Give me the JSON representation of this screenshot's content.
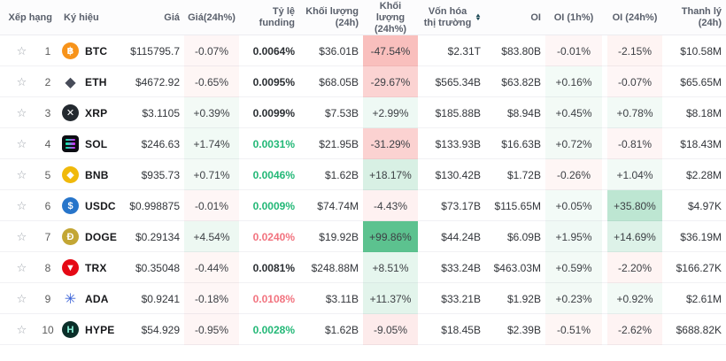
{
  "colors": {
    "heat_up_rgb": "44,176,110",
    "heat_down_rgb": "241,94,88",
    "funding_up": "#23b877",
    "funding_down": "#f2737f",
    "sort_icon": "#1d4a56",
    "star": "#a2a7ae"
  },
  "icons": {
    "star_glyph": "☆",
    "sort_up_glyph": "▲",
    "sort_down_glyph": "▼"
  },
  "header": {
    "columns": [
      {
        "id": "rank",
        "label": "Xếp hạng",
        "col": 1,
        "span": 2,
        "align": "right"
      },
      {
        "id": "symbol",
        "label": "Ký hiệu",
        "col": 3,
        "span": 1,
        "align": "left"
      },
      {
        "id": "price",
        "label": "Giá",
        "col": 4,
        "span": 1,
        "align": "right"
      },
      {
        "id": "chg24h",
        "label": "Giá(24h%)",
        "col": 5,
        "span": 1,
        "align": "center"
      },
      {
        "id": "funding",
        "label": "Tỷ lệ funding",
        "col": 6,
        "span": 1,
        "align": "right"
      },
      {
        "id": "vol",
        "label": "Khối lượng (24h)",
        "col": 7,
        "span": 1,
        "align": "right"
      },
      {
        "id": "volchg",
        "label": "Khối lượng (24h%)",
        "col": 8,
        "span": 1,
        "align": "center"
      },
      {
        "id": "mcap",
        "label": "Vốn hóa thị trường",
        "col": 9,
        "span": 1,
        "align": "center",
        "sortable": true,
        "wrap": true
      },
      {
        "id": "oi",
        "label": "OI",
        "col": 10,
        "span": 1,
        "align": "right"
      },
      {
        "id": "oi1h",
        "label": "OI (1h%)",
        "col": 11,
        "span": 1,
        "align": "center"
      },
      {
        "id": "oi24h",
        "label": "OI (24h%)",
        "col": 13,
        "span": 1,
        "align": "center"
      },
      {
        "id": "liq",
        "label": "Thanh lý (24h)",
        "col": 14,
        "span": 1,
        "align": "right"
      }
    ]
  },
  "rows": [
    {
      "rank": "1",
      "symbol": "BTC",
      "icon": {
        "shape": "circle",
        "bg": "#F7931A",
        "fg": "#ffffff",
        "glyph": "฿"
      },
      "price": "$115795.7",
      "chg24h": "-0.07%",
      "funding": {
        "text": "0.0064%",
        "tone": "neutral"
      },
      "vol": "$36.01B",
      "volchg": "-47.54%",
      "mcap": "$2.31T",
      "oi": "$83.80B",
      "oi1h": "-0.01%",
      "oi24h": "-2.15%",
      "liq": "$10.58M"
    },
    {
      "rank": "2",
      "symbol": "ETH",
      "icon": {
        "shape": "plain",
        "bg": "",
        "fg": "#474c59",
        "glyph": "◆"
      },
      "price": "$4672.92",
      "chg24h": "-0.65%",
      "funding": {
        "text": "0.0095%",
        "tone": "neutral"
      },
      "vol": "$68.05B",
      "volchg": "-29.67%",
      "mcap": "$565.34B",
      "oi": "$63.82B",
      "oi1h": "+0.16%",
      "oi24h": "-0.07%",
      "liq": "$65.65M"
    },
    {
      "rank": "3",
      "symbol": "XRP",
      "icon": {
        "shape": "circle",
        "bg": "#23292F",
        "fg": "#ffffff",
        "glyph": "✕"
      },
      "price": "$3.1105",
      "chg24h": "+0.39%",
      "funding": {
        "text": "0.0099%",
        "tone": "neutral"
      },
      "vol": "$7.53B",
      "volchg": "+2.99%",
      "mcap": "$185.88B",
      "oi": "$8.94B",
      "oi1h": "+0.45%",
      "oi24h": "+0.78%",
      "liq": "$8.18M"
    },
    {
      "rank": "4",
      "symbol": "SOL",
      "icon": {
        "shape": "sol",
        "bg": "#0c0d12",
        "fg": "",
        "glyph": ""
      },
      "price": "$246.63",
      "chg24h": "+1.74%",
      "funding": {
        "text": "0.0031%",
        "tone": "pos"
      },
      "vol": "$21.95B",
      "volchg": "-31.29%",
      "mcap": "$133.93B",
      "oi": "$16.63B",
      "oi1h": "+0.72%",
      "oi24h": "-0.81%",
      "liq": "$18.43M"
    },
    {
      "rank": "5",
      "symbol": "BNB",
      "icon": {
        "shape": "circle",
        "bg": "#F0B90B",
        "fg": "#ffffff",
        "glyph": "◆"
      },
      "price": "$935.73",
      "chg24h": "+0.71%",
      "funding": {
        "text": "0.0046%",
        "tone": "pos"
      },
      "vol": "$1.62B",
      "volchg": "+18.17%",
      "mcap": "$130.42B",
      "oi": "$1.72B",
      "oi1h": "-0.26%",
      "oi24h": "+1.04%",
      "liq": "$2.28M"
    },
    {
      "rank": "6",
      "symbol": "USDC",
      "icon": {
        "shape": "circle",
        "bg": "#2775CA",
        "fg": "#ffffff",
        "glyph": "$"
      },
      "price": "$0.998875",
      "chg24h": "-0.01%",
      "funding": {
        "text": "0.0009%",
        "tone": "pos"
      },
      "vol": "$74.74M",
      "volchg": "-4.43%",
      "mcap": "$73.17B",
      "oi": "$115.65M",
      "oi1h": "+0.05%",
      "oi24h": "+35.80%",
      "liq": "$4.97K"
    },
    {
      "rank": "7",
      "symbol": "DOGE",
      "icon": {
        "shape": "circle",
        "bg": "#C3A634",
        "fg": "#ffffff",
        "glyph": "Ð"
      },
      "price": "$0.29134",
      "chg24h": "+4.54%",
      "funding": {
        "text": "0.0240%",
        "tone": "neg"
      },
      "vol": "$19.92B",
      "volchg": "+99.86%",
      "mcap": "$44.24B",
      "oi": "$6.09B",
      "oi1h": "+1.95%",
      "oi24h": "+14.69%",
      "liq": "$36.19M"
    },
    {
      "rank": "8",
      "symbol": "TRX",
      "icon": {
        "shape": "circle",
        "bg": "#E50915",
        "fg": "#ffffff",
        "glyph": "▼"
      },
      "price": "$0.35048",
      "chg24h": "-0.44%",
      "funding": {
        "text": "0.0081%",
        "tone": "neutral"
      },
      "vol": "$248.88M",
      "volchg": "+8.51%",
      "mcap": "$33.24B",
      "oi": "$463.03M",
      "oi1h": "+0.59%",
      "oi24h": "-2.20%",
      "liq": "$166.27K"
    },
    {
      "rank": "9",
      "symbol": "ADA",
      "icon": {
        "shape": "plain",
        "bg": "",
        "fg": "#3b63d8",
        "glyph": "✳"
      },
      "price": "$0.9241",
      "chg24h": "-0.18%",
      "funding": {
        "text": "0.0108%",
        "tone": "neg"
      },
      "vol": "$3.11B",
      "volchg": "+11.37%",
      "mcap": "$33.21B",
      "oi": "$1.92B",
      "oi1h": "+0.23%",
      "oi24h": "+0.92%",
      "liq": "$2.61M"
    },
    {
      "rank": "10",
      "symbol": "HYPE",
      "icon": {
        "shape": "circle",
        "bg": "#0b2e29",
        "fg": "#8ef7dd",
        "glyph": "H"
      },
      "price": "$54.929",
      "chg24h": "-0.95%",
      "funding": {
        "text": "0.0028%",
        "tone": "pos"
      },
      "vol": "$1.62B",
      "volchg": "-9.05%",
      "mcap": "$18.45B",
      "oi": "$2.39B",
      "oi1h": "-0.51%",
      "oi24h": "-2.62%",
      "liq": "$688.82K"
    }
  ]
}
